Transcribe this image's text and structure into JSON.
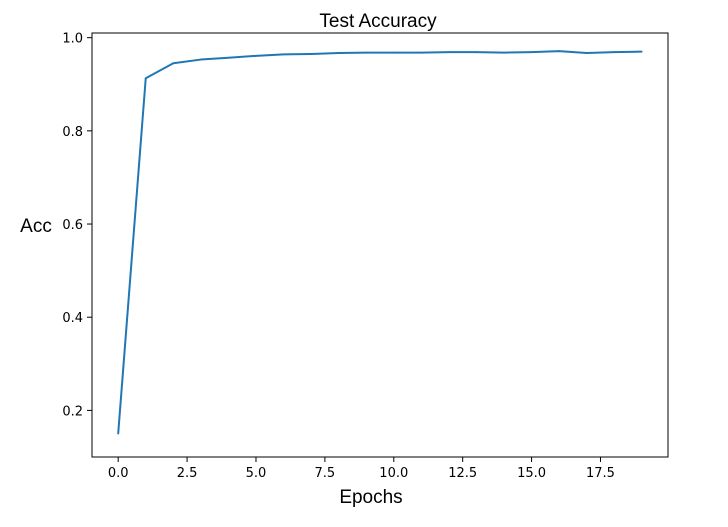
{
  "chart_data": {
    "type": "line",
    "title": "Test Accuracy",
    "xlabel": "Epochs",
    "ylabel": "Acc",
    "xlim": [
      -0.95,
      19.95
    ],
    "ylim": [
      0.1,
      1.01
    ],
    "x_ticks": [
      0.0,
      2.5,
      5.0,
      7.5,
      10.0,
      12.5,
      15.0,
      17.5
    ],
    "x_tick_labels": [
      "0.0",
      "2.5",
      "5.0",
      "7.5",
      "10.0",
      "12.5",
      "15.0",
      "17.5"
    ],
    "y_ticks": [
      0.2,
      0.4,
      0.6,
      0.8,
      1.0
    ],
    "y_tick_labels": [
      "0.2",
      "0.4",
      "0.6",
      "0.8",
      "1.0"
    ],
    "grid": false,
    "series": [
      {
        "color": "#1f77b4",
        "x": [
          0,
          1,
          2,
          3,
          4,
          5,
          6,
          7,
          8,
          9,
          10,
          11,
          12,
          13,
          14,
          15,
          16,
          17,
          18,
          19
        ],
        "y": [
          0.15,
          0.913,
          0.945,
          0.953,
          0.957,
          0.961,
          0.964,
          0.965,
          0.967,
          0.968,
          0.968,
          0.968,
          0.969,
          0.969,
          0.968,
          0.969,
          0.971,
          0.967,
          0.969,
          0.97
        ]
      }
    ]
  }
}
